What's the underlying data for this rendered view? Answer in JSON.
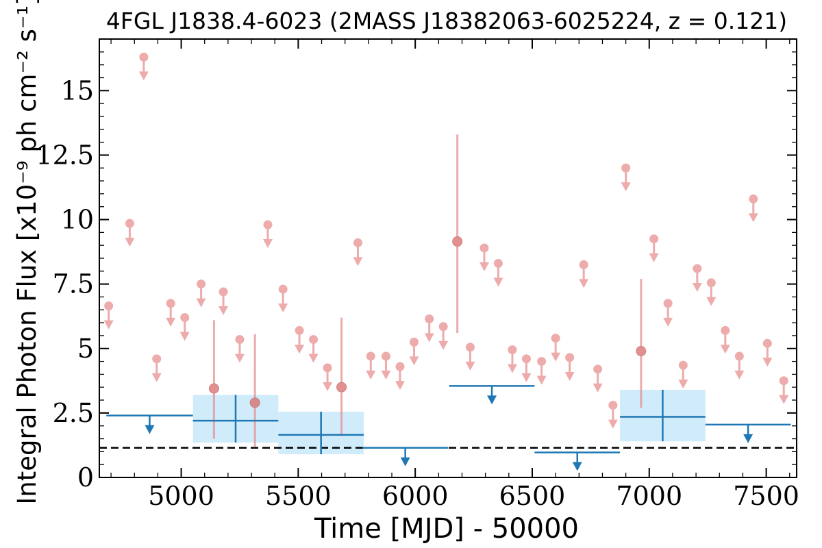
{
  "chart_data": {
    "type": "scatter",
    "title": "4FGL J1838.4-6023 (2MASS J18382063-6025224, z = 0.121)",
    "xlabel": "Time [MJD] - 50000",
    "ylabel": "Integral Photon Flux [x10⁻⁹ ph cm⁻² s⁻¹]",
    "xlim": [
      4650,
      7630
    ],
    "ylim": [
      0,
      17
    ],
    "xticks": [
      "5000",
      "5500",
      "6000",
      "6500",
      "7000",
      "7500"
    ],
    "yticks": [
      "0",
      "2.5",
      "5",
      "7.5",
      "10",
      "12.5",
      "15"
    ],
    "reference_line": 1.15,
    "colors": {
      "short_bins": "#e88f8f",
      "long_bins": "#1f77b4",
      "error_box": "#d0ecfb",
      "reference": "#000000"
    },
    "series": [
      {
        "upper_limits": [
          {
            "x": 4690,
            "y": 6.65
          },
          {
            "x": 4780,
            "y": 9.85
          },
          {
            "x": 4840,
            "y": 16.3
          },
          {
            "x": 4895,
            "y": 4.6
          },
          {
            "x": 4955,
            "y": 6.75
          },
          {
            "x": 5015,
            "y": 6.2
          },
          {
            "x": 5085,
            "y": 7.5
          },
          {
            "x": 5180,
            "y": 7.2
          },
          {
            "x": 5250,
            "y": 5.35
          },
          {
            "x": 5370,
            "y": 9.8
          },
          {
            "x": 5435,
            "y": 7.3
          },
          {
            "x": 5505,
            "y": 5.7
          },
          {
            "x": 5565,
            "y": 5.35
          },
          {
            "x": 5625,
            "y": 4.25
          },
          {
            "x": 5755,
            "y": 9.1
          },
          {
            "x": 5810,
            "y": 4.7
          },
          {
            "x": 5875,
            "y": 4.7
          },
          {
            "x": 5935,
            "y": 4.3
          },
          {
            "x": 5995,
            "y": 5.25
          },
          {
            "x": 6060,
            "y": 6.15
          },
          {
            "x": 6120,
            "y": 5.85
          },
          {
            "x": 6235,
            "y": 5.05
          },
          {
            "x": 6295,
            "y": 8.9
          },
          {
            "x": 6355,
            "y": 8.3
          },
          {
            "x": 6415,
            "y": 4.95
          },
          {
            "x": 6475,
            "y": 4.6
          },
          {
            "x": 6540,
            "y": 4.5
          },
          {
            "x": 6600,
            "y": 5.4
          },
          {
            "x": 6660,
            "y": 4.65
          },
          {
            "x": 6720,
            "y": 8.25
          },
          {
            "x": 6780,
            "y": 4.2
          },
          {
            "x": 6845,
            "y": 2.8
          },
          {
            "x": 6900,
            "y": 12.0
          },
          {
            "x": 7020,
            "y": 9.25
          },
          {
            "x": 7080,
            "y": 6.75
          },
          {
            "x": 7145,
            "y": 4.35
          },
          {
            "x": 7205,
            "y": 8.1
          },
          {
            "x": 7265,
            "y": 7.55
          },
          {
            "x": 7325,
            "y": 5.7
          },
          {
            "x": 7385,
            "y": 4.7
          },
          {
            "x": 7445,
            "y": 10.8
          },
          {
            "x": 7505,
            "y": 5.2
          },
          {
            "x": 7575,
            "y": 3.75
          }
        ],
        "detections": [
          {
            "x": 5140,
            "y": 3.45,
            "ylow": 1.5,
            "yhigh": 6.1
          },
          {
            "x": 5315,
            "y": 2.9,
            "ylow": 1.2,
            "yhigh": 5.55
          },
          {
            "x": 5685,
            "y": 3.5,
            "ylow": 1.65,
            "yhigh": 6.2
          },
          {
            "x": 6180,
            "y": 9.15,
            "ylow": 5.6,
            "yhigh": 13.3
          },
          {
            "x": 6965,
            "y": 4.9,
            "ylow": 2.7,
            "yhigh": 7.7
          }
        ]
      },
      {
        "upper_limits": [
          {
            "x0": 4680,
            "x1": 5050,
            "y": 2.4
          },
          {
            "x0": 5775,
            "x1": 6140,
            "y": 1.15
          },
          {
            "x0": 6145,
            "x1": 6510,
            "y": 3.55
          },
          {
            "x0": 6510,
            "x1": 6875,
            "y": 0.97
          },
          {
            "x0": 7240,
            "x1": 7605,
            "y": 2.05
          }
        ],
        "detections": [
          {
            "x0": 5050,
            "x1": 5415,
            "y": 2.2,
            "ylow": 1.35,
            "yhigh": 3.2
          },
          {
            "x0": 5415,
            "x1": 5780,
            "y": 1.65,
            "ylow": 0.9,
            "yhigh": 2.55
          },
          {
            "x0": 6875,
            "x1": 7240,
            "y": 2.35,
            "ylow": 1.4,
            "yhigh": 3.4
          }
        ]
      }
    ]
  }
}
